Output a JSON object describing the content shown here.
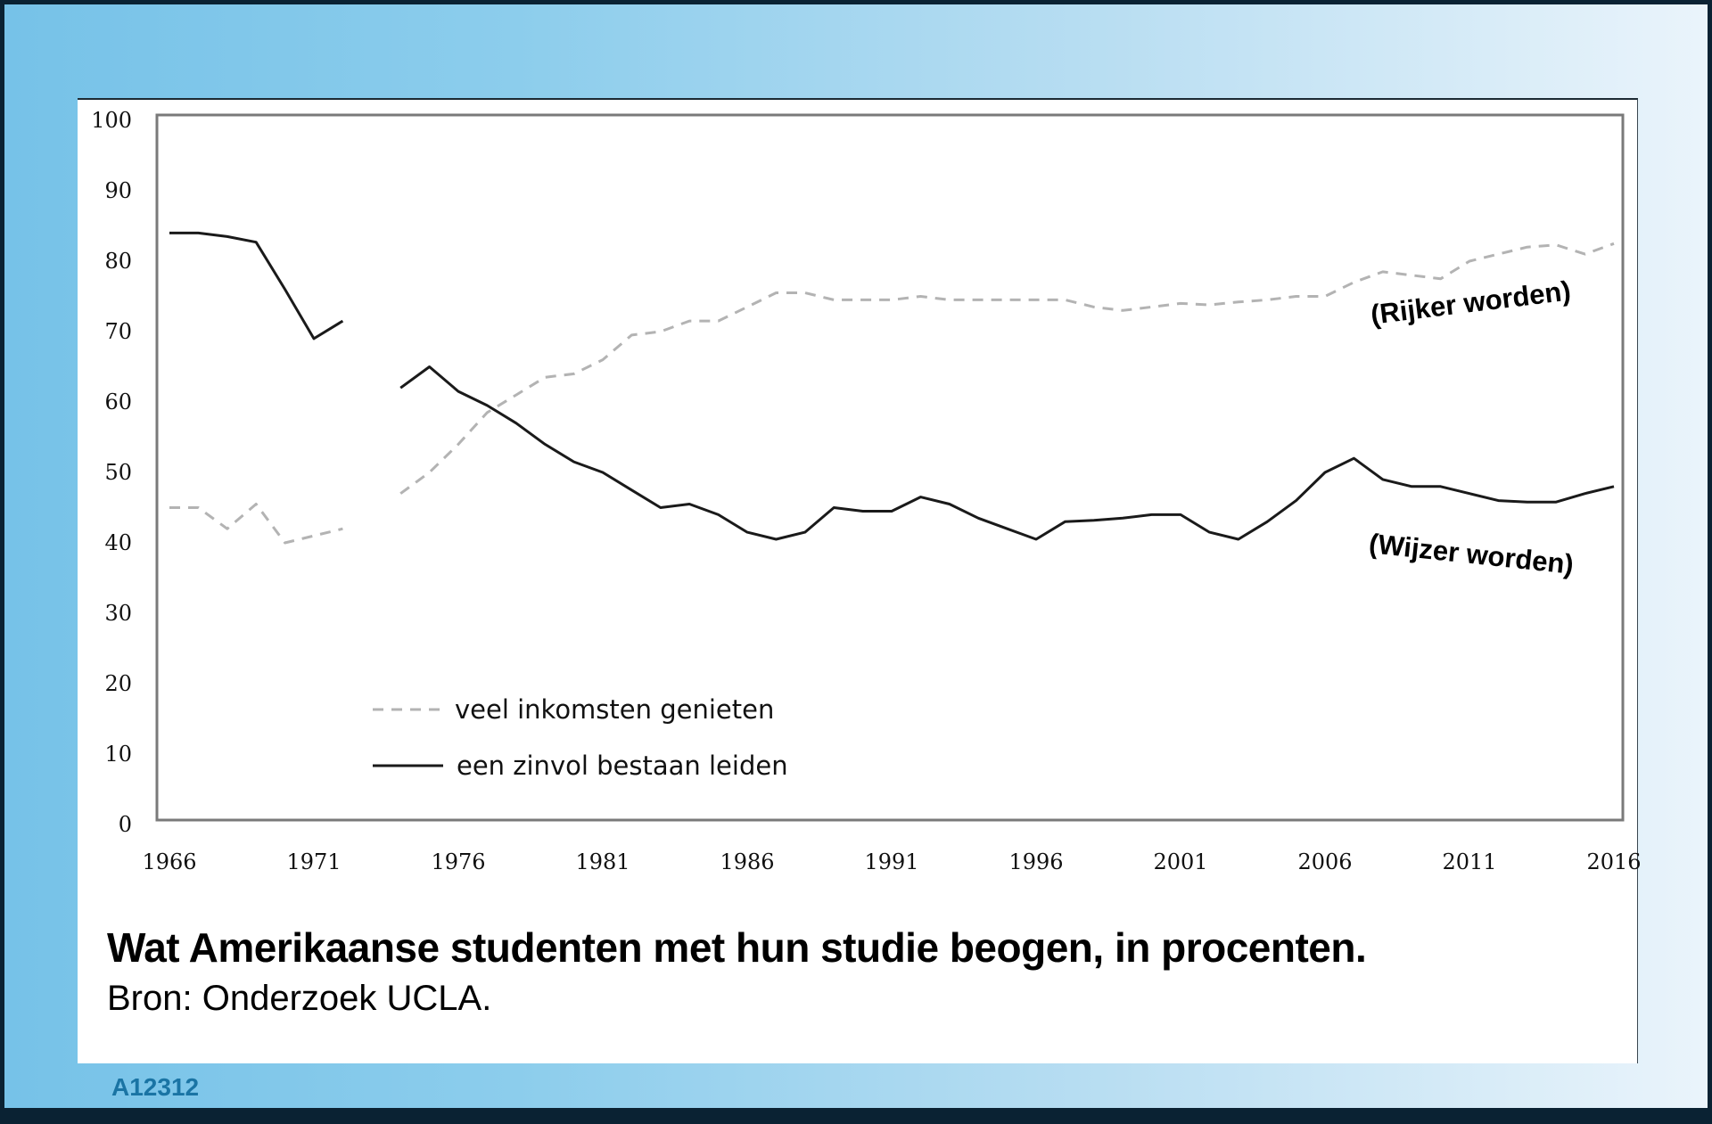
{
  "caption": {
    "title": "Wat Amerikaanse studenten met hun studie beogen, in procenten.",
    "source": "Bron: Onderzoek UCLA."
  },
  "footer": {
    "code": "A12312"
  },
  "colors": {
    "solid_line": "#1a1a1a",
    "dashed_line": "#b3b3b3",
    "axis_box": "#7a7a7a",
    "code_text": "#1a74a4"
  },
  "chart_data": {
    "type": "line",
    "title": "Wat Amerikaanse studenten met hun studie beogen, in procenten.",
    "xlabel": "",
    "ylabel": "",
    "ylim": [
      0,
      100
    ],
    "xlim": [
      1965,
      2017
    ],
    "grid": false,
    "legend_position": "lower-left inside plot",
    "y_ticks": [
      "0",
      "10",
      "20",
      "30",
      "40",
      "50",
      "60",
      "70",
      "80",
      "90",
      "100"
    ],
    "x_ticks": [
      "1966",
      "1971",
      "1976",
      "1981",
      "1986",
      "1991",
      "1996",
      "2001",
      "2006",
      "2011",
      "2016"
    ],
    "annotations": [
      {
        "text": "(Rijker worden)",
        "near_series": "veel inkomsten genieten"
      },
      {
        "text": "(Wijzer worden)",
        "near_series": "een zinvol bestaan leiden"
      }
    ],
    "series": [
      {
        "name": "veel inkomsten genieten",
        "style": "dashed",
        "segments": [
          {
            "x": [
              1966,
              1967,
              1968,
              1969,
              1970,
              1971,
              1972
            ],
            "values": [
              45,
              45,
              42,
              45.5,
              40,
              41,
              42
            ]
          },
          {
            "x": [
              1974,
              1975,
              1976,
              1977,
              1978,
              1979,
              1980,
              1981,
              1982,
              1983,
              1984,
              1985,
              1986,
              1987,
              1988,
              1989,
              1990,
              1991,
              1992,
              1993,
              1994,
              1995,
              1996,
              1997,
              1998,
              1999,
              2000,
              2001,
              2002,
              2003,
              2004,
              2005,
              2006,
              2007,
              2008,
              2009,
              2010,
              2011,
              2012,
              2013,
              2014,
              2015,
              2016
            ],
            "values": [
              47,
              50,
              54,
              58.5,
              61,
              63.5,
              64,
              66,
              69.5,
              70,
              71.5,
              71.5,
              73.5,
              75.5,
              75.5,
              74.5,
              74.5,
              74.5,
              75,
              74.5,
              74.5,
              74.5,
              74.5,
              74.5,
              73.5,
              73,
              73.5,
              74,
              73.8,
              74.2,
              74.5,
              75,
              75,
              77,
              78.5,
              78,
              77.5,
              80,
              81,
              82,
              82.3,
              81,
              82.5
            ]
          }
        ]
      },
      {
        "name": "een zinvol bestaan leiden",
        "style": "solid",
        "segments": [
          {
            "x": [
              1966,
              1967,
              1968,
              1969,
              1970,
              1971,
              1972
            ],
            "values": [
              84,
              84,
              83.5,
              82.7,
              76,
              69,
              71.5
            ]
          },
          {
            "x": [
              1974,
              1975,
              1976,
              1977,
              1978,
              1979,
              1980,
              1981,
              1982,
              1983,
              1984,
              1985,
              1986,
              1987,
              1988,
              1989,
              1990,
              1991,
              1992,
              1993,
              1994,
              1995,
              1996,
              1997,
              1998,
              1999,
              2000,
              2001,
              2002,
              2003,
              2004,
              2005,
              2006,
              2007,
              2008,
              2009,
              2010,
              2011,
              2012,
              2013,
              2014,
              2015,
              2016
            ],
            "values": [
              62,
              65,
              61.5,
              59.5,
              57,
              54,
              51.5,
              50,
              47.5,
              45,
              45.5,
              44,
              41.5,
              40.5,
              41.5,
              45,
              44.5,
              44.5,
              46.5,
              45.5,
              43.5,
              42,
              40.5,
              43,
              43.2,
              43.5,
              44,
              44,
              41.5,
              40.5,
              43,
              46,
              50,
              52,
              49,
              48,
              48,
              47,
              46,
              45.8,
              45.8,
              47,
              48
            ]
          }
        ]
      }
    ]
  }
}
